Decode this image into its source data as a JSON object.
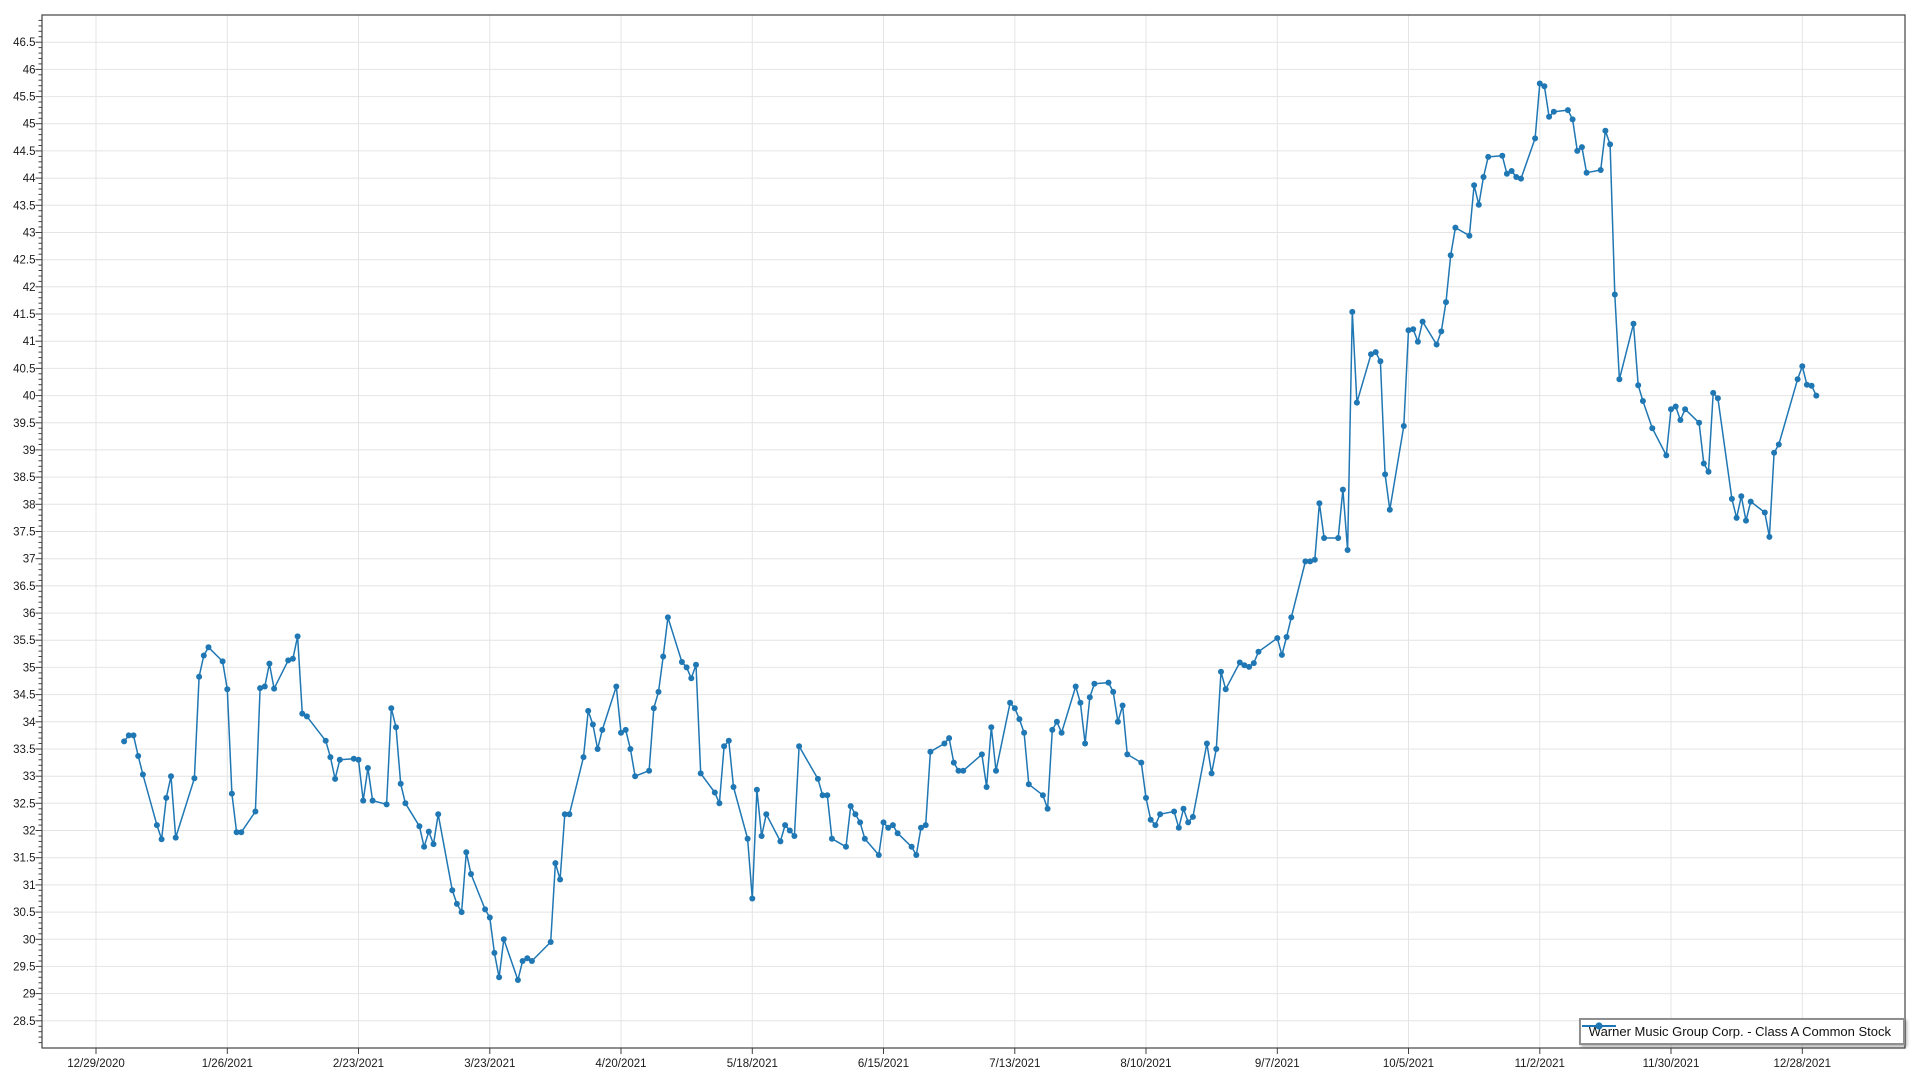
{
  "window": {
    "background": "#ffffff"
  },
  "chart_data": {
    "type": "line",
    "title": "",
    "grid": true,
    "legend_position": "bottom-right",
    "marker": "circle",
    "line_color": "#1f77b4",
    "grid_color": "#e4e4e4",
    "axis_color": "#424242",
    "label_color": "#1a1a1a",
    "x_axis": {
      "tick_interval_days": 28,
      "tick_labels": [
        "12/29/2020",
        "1/26/2021",
        "2/23/2021",
        "3/23/2021",
        "4/20/2021",
        "5/18/2021",
        "6/15/2021",
        "7/13/2021",
        "8/10/2021",
        "9/7/2021",
        "10/5/2021",
        "11/2/2021",
        "11/30/2021",
        "12/28/2021"
      ]
    },
    "y_axis": {
      "min": 28,
      "max": 47,
      "label_min": 28.5,
      "label_max": 46.5,
      "label_step": 0.5,
      "minor_tick_step": 0.1
    },
    "series": [
      {
        "name": "Warner Music Group Corp. - Class A Common Stock",
        "color": "#1f77b4",
        "dates": [
          "1/4/2021",
          "1/5/2021",
          "1/6/2021",
          "1/7/2021",
          "1/8/2021",
          "1/11/2021",
          "1/12/2021",
          "1/13/2021",
          "1/14/2021",
          "1/15/2021",
          "1/19/2021",
          "1/20/2021",
          "1/21/2021",
          "1/22/2021",
          "1/25/2021",
          "1/26/2021",
          "1/27/2021",
          "1/28/2021",
          "1/29/2021",
          "2/1/2021",
          "2/2/2021",
          "2/3/2021",
          "2/4/2021",
          "2/5/2021",
          "2/8/2021",
          "2/9/2021",
          "2/10/2021",
          "2/11/2021",
          "2/12/2021",
          "2/16/2021",
          "2/17/2021",
          "2/18/2021",
          "2/19/2021",
          "2/22/2021",
          "2/23/2021",
          "2/24/2021",
          "2/25/2021",
          "2/26/2021",
          "3/1/2021",
          "3/2/2021",
          "3/3/2021",
          "3/4/2021",
          "3/5/2021",
          "3/8/2021",
          "3/9/2021",
          "3/10/2021",
          "3/11/2021",
          "3/12/2021",
          "3/15/2021",
          "3/16/2021",
          "3/17/2021",
          "3/18/2021",
          "3/19/2021",
          "3/22/2021",
          "3/23/2021",
          "3/24/2021",
          "3/25/2021",
          "3/26/2021",
          "3/29/2021",
          "3/30/2021",
          "3/31/2021",
          "4/1/2021",
          "4/5/2021",
          "4/6/2021",
          "4/7/2021",
          "4/8/2021",
          "4/9/2021",
          "4/12/2021",
          "4/13/2021",
          "4/14/2021",
          "4/15/2021",
          "4/16/2021",
          "4/19/2021",
          "4/20/2021",
          "4/21/2021",
          "4/22/2021",
          "4/23/2021",
          "4/26/2021",
          "4/27/2021",
          "4/28/2021",
          "4/29/2021",
          "4/30/2021",
          "5/3/2021",
          "5/4/2021",
          "5/5/2021",
          "5/6/2021",
          "5/7/2021",
          "5/10/2021",
          "5/11/2021",
          "5/12/2021",
          "5/13/2021",
          "5/14/2021",
          "5/17/2021",
          "5/18/2021",
          "5/19/2021",
          "5/20/2021",
          "5/21/2021",
          "5/24/2021",
          "5/25/2021",
          "5/26/2021",
          "5/27/2021",
          "5/28/2021",
          "6/1/2021",
          "6/2/2021",
          "6/3/2021",
          "6/4/2021",
          "6/7/2021",
          "6/8/2021",
          "6/9/2021",
          "6/10/2021",
          "6/11/2021",
          "6/14/2021",
          "6/15/2021",
          "6/16/2021",
          "6/17/2021",
          "6/18/2021",
          "6/21/2021",
          "6/22/2021",
          "6/23/2021",
          "6/24/2021",
          "6/25/2021",
          "6/28/2021",
          "6/29/2021",
          "6/30/2021",
          "7/1/2021",
          "7/2/2021",
          "7/6/2021",
          "7/7/2021",
          "7/8/2021",
          "7/9/2021",
          "7/12/2021",
          "7/13/2021",
          "7/14/2021",
          "7/15/2021",
          "7/16/2021",
          "7/19/2021",
          "7/20/2021",
          "7/21/2021",
          "7/22/2021",
          "7/23/2021",
          "7/26/2021",
          "7/27/2021",
          "7/28/2021",
          "7/29/2021",
          "7/30/2021",
          "8/2/2021",
          "8/3/2021",
          "8/4/2021",
          "8/5/2021",
          "8/6/2021",
          "8/9/2021",
          "8/10/2021",
          "8/11/2021",
          "8/12/2021",
          "8/13/2021",
          "8/16/2021",
          "8/17/2021",
          "8/18/2021",
          "8/19/2021",
          "8/20/2021",
          "8/23/2021",
          "8/24/2021",
          "8/25/2021",
          "8/26/2021",
          "8/27/2021",
          "8/30/2021",
          "8/31/2021",
          "9/1/2021",
          "9/2/2021",
          "9/3/2021",
          "9/7/2021",
          "9/8/2021",
          "9/9/2021",
          "9/10/2021",
          "9/13/2021",
          "9/14/2021",
          "9/15/2021",
          "9/16/2021",
          "9/17/2021",
          "9/20/2021",
          "9/21/2021",
          "9/22/2021",
          "9/23/2021",
          "9/24/2021",
          "9/27/2021",
          "9/28/2021",
          "9/29/2021",
          "9/30/2021",
          "10/1/2021",
          "10/4/2021",
          "10/5/2021",
          "10/6/2021",
          "10/7/2021",
          "10/8/2021",
          "10/11/2021",
          "10/12/2021",
          "10/13/2021",
          "10/14/2021",
          "10/15/2021",
          "10/18/2021",
          "10/19/2021",
          "10/20/2021",
          "10/21/2021",
          "10/22/2021",
          "10/25/2021",
          "10/26/2021",
          "10/27/2021",
          "10/28/2021",
          "10/29/2021",
          "11/1/2021",
          "11/2/2021",
          "11/3/2021",
          "11/4/2021",
          "11/5/2021",
          "11/8/2021",
          "11/9/2021",
          "11/10/2021",
          "11/11/2021",
          "11/12/2021",
          "11/15/2021",
          "11/16/2021",
          "11/17/2021",
          "11/18/2021",
          "11/19/2021",
          "11/22/2021",
          "11/23/2021",
          "11/24/2021",
          "11/26/2021",
          "11/29/2021",
          "11/30/2021",
          "12/1/2021",
          "12/2/2021",
          "12/3/2021",
          "12/6/2021",
          "12/7/2021",
          "12/8/2021",
          "12/9/2021",
          "12/10/2021",
          "12/13/2021",
          "12/14/2021",
          "12/15/2021",
          "12/16/2021",
          "12/17/2021",
          "12/20/2021",
          "12/21/2021",
          "12/22/2021",
          "12/23/2021",
          "12/27/2021",
          "12/28/2021",
          "12/29/2021",
          "12/30/2021",
          "12/31/2021"
        ],
        "values": [
          33.64,
          33.75,
          33.75,
          33.37,
          33.03,
          32.1,
          31.84,
          32.6,
          33.0,
          31.87,
          32.96,
          34.83,
          35.22,
          35.37,
          35.11,
          34.6,
          32.68,
          31.97,
          31.97,
          32.35,
          34.62,
          34.65,
          35.07,
          34.61,
          35.13,
          35.16,
          35.57,
          34.15,
          34.1,
          33.65,
          33.35,
          32.95,
          33.3,
          33.32,
          33.3,
          32.55,
          33.15,
          32.55,
          32.48,
          34.25,
          33.9,
          32.86,
          32.5,
          32.08,
          31.7,
          31.98,
          31.75,
          32.3,
          30.9,
          30.65,
          30.5,
          31.6,
          31.2,
          30.55,
          30.4,
          29.75,
          29.3,
          30.0,
          29.25,
          29.6,
          29.65,
          29.6,
          29.95,
          31.4,
          31.1,
          32.3,
          32.3,
          33.35,
          34.2,
          33.95,
          33.5,
          33.85,
          34.65,
          33.8,
          33.85,
          33.5,
          33.0,
          33.1,
          34.25,
          34.55,
          35.2,
          35.92,
          35.1,
          35.0,
          34.8,
          35.05,
          33.05,
          32.7,
          32.5,
          33.55,
          33.65,
          32.8,
          31.85,
          30.75,
          32.75,
          31.9,
          32.3,
          31.8,
          32.1,
          32.0,
          31.9,
          33.55,
          32.95,
          32.65,
          32.65,
          31.85,
          31.7,
          32.45,
          32.3,
          32.15,
          31.85,
          31.55,
          32.15,
          32.05,
          32.1,
          31.95,
          31.7,
          31.55,
          32.05,
          32.1,
          33.45,
          33.6,
          33.7,
          33.25,
          33.1,
          33.1,
          33.4,
          32.8,
          33.9,
          33.1,
          34.35,
          34.25,
          34.05,
          33.8,
          32.85,
          32.65,
          32.4,
          33.85,
          34.0,
          33.8,
          34.65,
          34.35,
          33.6,
          34.45,
          34.7,
          34.72,
          34.55,
          34.0,
          34.3,
          33.4,
          33.25,
          32.6,
          32.2,
          32.1,
          32.3,
          32.35,
          32.05,
          32.4,
          32.15,
          32.25,
          33.6,
          33.05,
          33.5,
          34.92,
          34.6,
          35.09,
          35.04,
          35.01,
          35.08,
          35.29,
          35.54,
          35.23,
          35.56,
          35.92,
          36.95,
          36.95,
          36.98,
          38.02,
          37.38,
          37.38,
          38.27,
          37.16,
          41.54,
          39.87,
          40.76,
          40.8,
          40.63,
          38.55,
          37.9,
          39.44,
          41.2,
          41.22,
          40.99,
          41.36,
          40.94,
          41.18,
          41.72,
          42.58,
          43.09,
          42.94,
          43.87,
          43.51,
          44.02,
          44.39,
          44.41,
          44.08,
          44.13,
          44.02,
          43.99,
          44.73,
          45.74,
          45.69,
          45.13,
          45.22,
          45.25,
          45.08,
          44.5,
          44.57,
          44.1,
          44.15,
          44.87,
          44.62,
          41.86,
          40.3,
          41.32,
          40.19,
          39.9,
          39.4,
          38.9,
          39.75,
          39.8,
          39.55,
          39.75,
          39.5,
          38.75,
          38.6,
          40.05,
          39.95,
          38.1,
          37.75,
          38.15,
          37.7,
          38.05,
          37.85,
          37.4,
          38.95,
          39.1,
          40.3,
          40.54,
          40.2,
          40.18,
          40.0
        ]
      }
    ]
  }
}
